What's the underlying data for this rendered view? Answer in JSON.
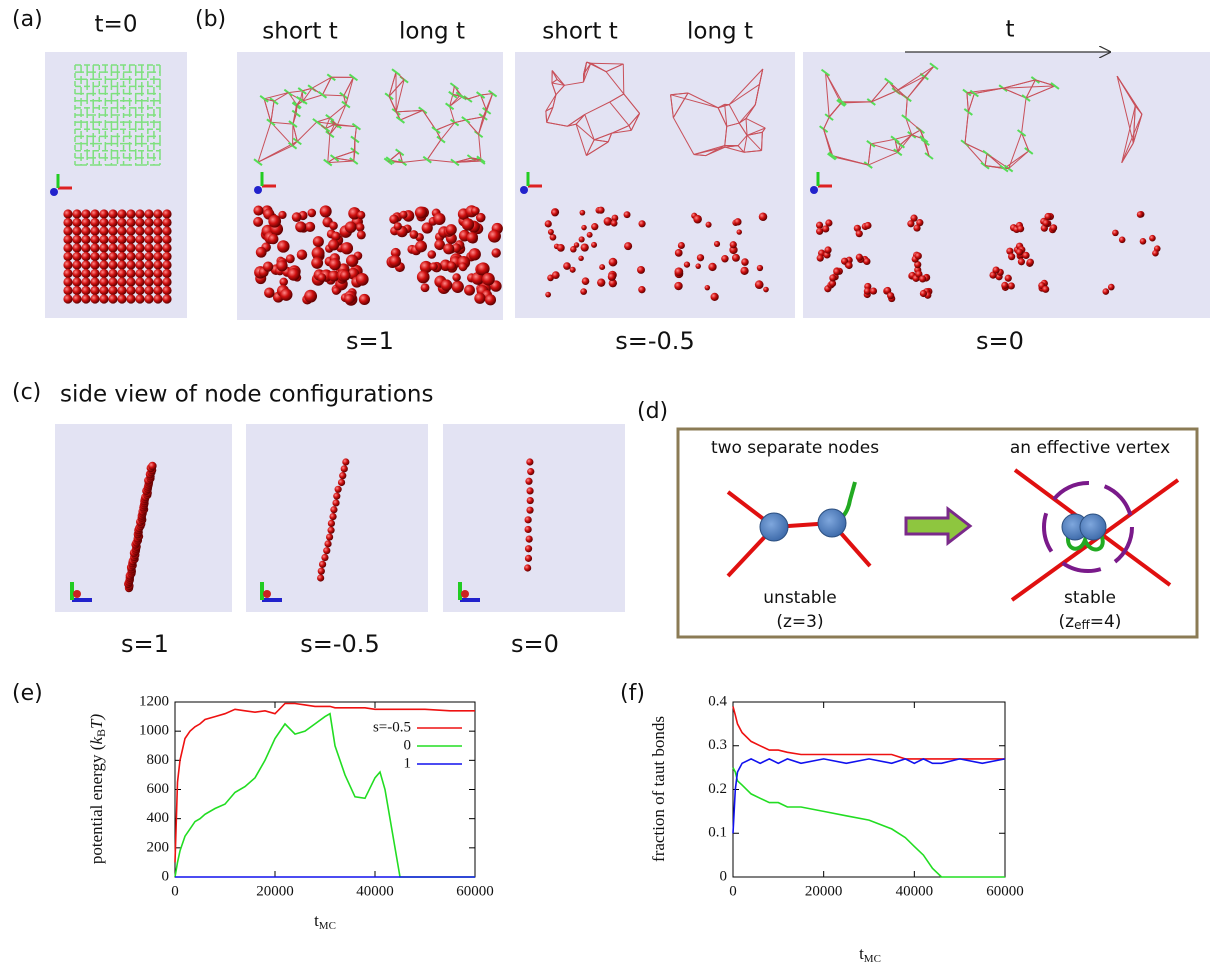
{
  "panels": {
    "a": {
      "label": "(a)",
      "title": "t=0"
    },
    "b": {
      "label": "(b)",
      "columns": [
        "short t",
        "long t",
        "short t",
        "long t"
      ],
      "arrow_label": "t",
      "groups": [
        "s=1",
        "s=-0.5",
        "s=0"
      ]
    },
    "c": {
      "label": "(c)",
      "title": "side view of node configurations",
      "captions": [
        "s=1",
        "s=-0.5",
        "s=0"
      ]
    },
    "d": {
      "label": "(d)",
      "left_title": "two separate nodes",
      "right_title": "an effective  vertex",
      "left_state": "unstable",
      "left_z": "(z=3)",
      "right_state": "stable",
      "right_z": [
        "(z",
        "eff",
        "=4)"
      ]
    },
    "e": {
      "label": "(e)"
    },
    "f": {
      "label": "(f)"
    }
  },
  "chart_data": [
    {
      "type": "line",
      "xlabel": [
        "t",
        "MC"
      ],
      "ylabel": [
        "potential energy (",
        "k",
        "B",
        "T)"
      ],
      "xlim": [
        0,
        60000
      ],
      "xticks": [
        0,
        20000,
        40000,
        60000
      ],
      "ylim": [
        0,
        1200
      ],
      "yticks": [
        0,
        200,
        400,
        600,
        800,
        1000,
        1200
      ],
      "legend": "upper right",
      "x": [
        0,
        500,
        1000,
        2000,
        3000,
        4000,
        5000,
        6000,
        8000,
        10000,
        12000,
        14000,
        16000,
        18000,
        20000,
        22000,
        24000,
        26000,
        28000,
        30000,
        31000,
        32000,
        34000,
        36000,
        38000,
        40000,
        41000,
        42000,
        44000,
        45000,
        46000,
        50000,
        55000,
        60000
      ],
      "series": [
        {
          "name": "s=-0.5",
          "color": "#ee1111",
          "values": [
            100,
            650,
            800,
            950,
            1000,
            1030,
            1050,
            1080,
            1100,
            1120,
            1150,
            1140,
            1130,
            1140,
            1120,
            1190,
            1190,
            1180,
            1170,
            1170,
            1170,
            1160,
            1160,
            1160,
            1160,
            1150,
            1150,
            1150,
            1150,
            1150,
            1150,
            1150,
            1140,
            1140
          ]
        },
        {
          "name": "0",
          "color": "#22dd22",
          "values": [
            0,
            100,
            180,
            280,
            330,
            380,
            400,
            430,
            470,
            500,
            580,
            620,
            680,
            800,
            950,
            1050,
            980,
            1000,
            1050,
            1100,
            1120,
            900,
            700,
            550,
            540,
            680,
            720,
            600,
            200,
            0,
            0,
            0,
            0,
            0
          ]
        },
        {
          "name": "1",
          "color": "#1111ee",
          "values": [
            0,
            0,
            0,
            0,
            0,
            0,
            0,
            0,
            0,
            0,
            0,
            0,
            0,
            0,
            0,
            0,
            0,
            0,
            0,
            0,
            0,
            0,
            0,
            0,
            0,
            0,
            0,
            0,
            0,
            0,
            0,
            0,
            0,
            0
          ]
        }
      ]
    },
    {
      "type": "line",
      "xlabel": [
        "t",
        "MC"
      ],
      "ylabel": [
        "fraction of taut bonds"
      ],
      "xlim": [
        0,
        60000
      ],
      "xticks": [
        0,
        20000,
        40000,
        60000
      ],
      "ylim": [
        0,
        0.4
      ],
      "yticks": [
        0,
        0.1,
        0.2,
        0.3,
        0.4
      ],
      "x": [
        0,
        500,
        1000,
        2000,
        4000,
        6000,
        8000,
        10000,
        12000,
        15000,
        20000,
        25000,
        30000,
        35000,
        38000,
        40000,
        42000,
        44000,
        46000,
        50000,
        55000,
        60000
      ],
      "series": [
        {
          "color": "#ee1111",
          "values": [
            0.39,
            0.37,
            0.35,
            0.33,
            0.31,
            0.3,
            0.29,
            0.29,
            0.285,
            0.28,
            0.28,
            0.28,
            0.28,
            0.28,
            0.27,
            0.27,
            0.27,
            0.27,
            0.27,
            0.27,
            0.27,
            0.27
          ]
        },
        {
          "color": "#22dd22",
          "values": [
            0.25,
            0.24,
            0.22,
            0.21,
            0.19,
            0.18,
            0.17,
            0.17,
            0.16,
            0.16,
            0.15,
            0.14,
            0.13,
            0.11,
            0.09,
            0.07,
            0.05,
            0.02,
            0,
            0,
            0,
            0
          ]
        },
        {
          "color": "#1111ee",
          "values": [
            0.1,
            0.2,
            0.24,
            0.26,
            0.27,
            0.26,
            0.27,
            0.26,
            0.27,
            0.26,
            0.27,
            0.26,
            0.27,
            0.26,
            0.27,
            0.26,
            0.27,
            0.26,
            0.26,
            0.27,
            0.26,
            0.27
          ]
        }
      ]
    }
  ]
}
